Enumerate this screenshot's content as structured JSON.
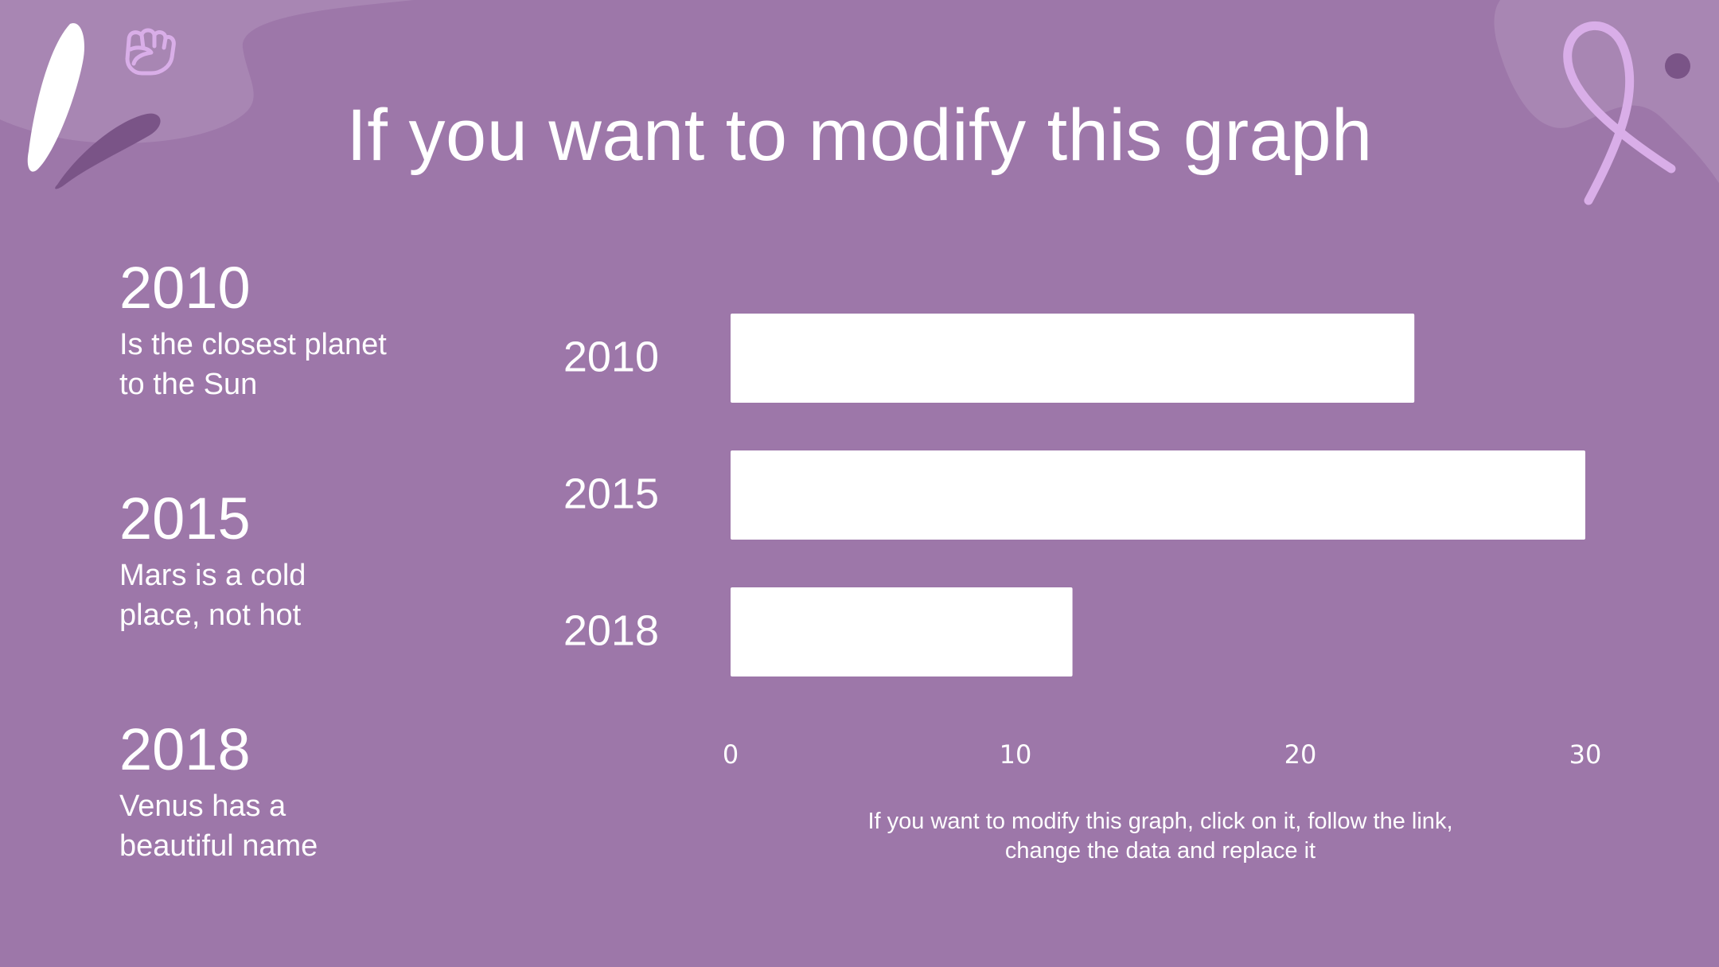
{
  "slide": {
    "title": "If you want to modify this graph",
    "note": "If you want to modify this graph, click on it, follow the link, change the data and replace it"
  },
  "info": [
    {
      "year": "2010",
      "desc_line1": "Is the closest planet",
      "desc_line2": "to the Sun"
    },
    {
      "year": "2015",
      "desc_line1": "Mars is a cold",
      "desc_line2": "place, not hot"
    },
    {
      "year": "2018",
      "desc_line1": "Venus has a",
      "desc_line2": "beautiful name"
    }
  ],
  "colors": {
    "background": "#9d77a9",
    "bar": "#ffffff",
    "text": "#ffffff",
    "accent_light": "#d9aee8",
    "accent_dark": "#7a5487",
    "blob": "#a886b3"
  },
  "icons": [
    "fist-icon",
    "ribbon-icon"
  ],
  "chart_data": {
    "type": "bar",
    "orientation": "horizontal",
    "categories": [
      "2010",
      "2015",
      "2018"
    ],
    "values": [
      24,
      30,
      12
    ],
    "xlim": [
      0,
      30
    ],
    "xticks": [
      "0",
      "10",
      "20",
      "30"
    ],
    "grid": false,
    "legend": "none"
  }
}
